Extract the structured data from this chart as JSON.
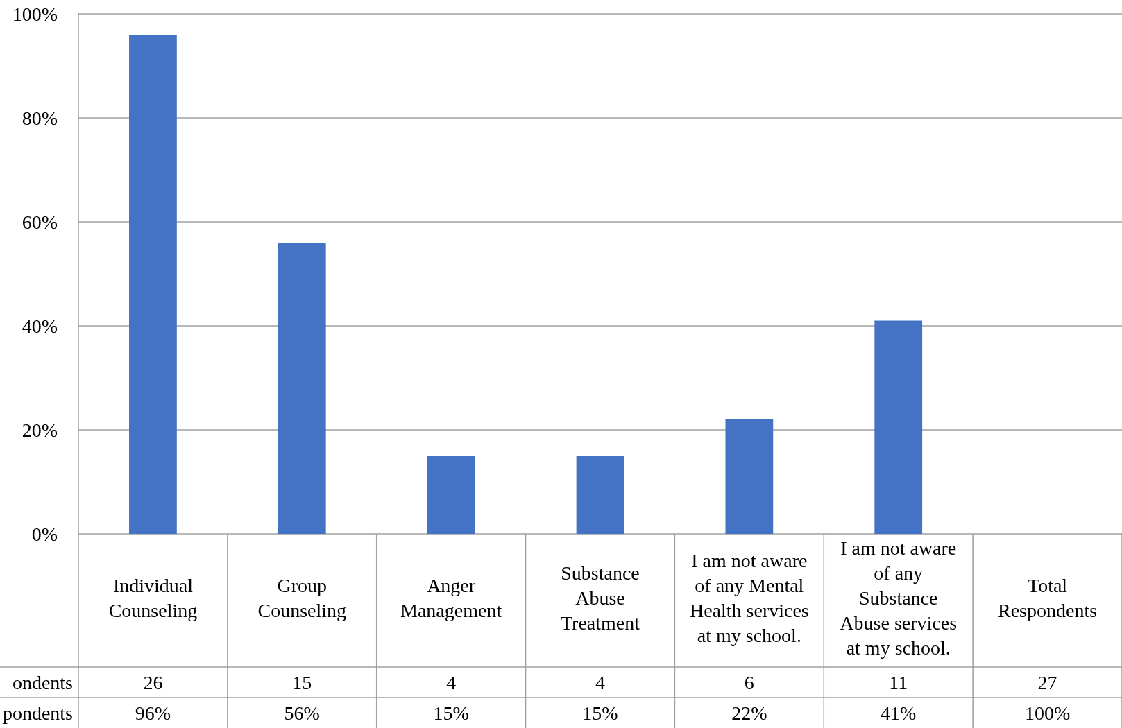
{
  "chart_data": {
    "type": "bar",
    "categories": [
      "Individual Counseling",
      "Group Counseling",
      "Anger Management",
      "Substance Abuse Treatment",
      "I am not aware of any Mental Health services at my school.",
      "I am not aware of any Substance Abuse services at my school.",
      "Total Respondents"
    ],
    "series": [
      {
        "name": "pondents",
        "color": "#4472c4",
        "values": [
          96,
          56,
          15,
          15,
          22,
          41,
          null
        ],
        "value_labels": [
          "96%",
          "56%",
          "15%",
          "15%",
          "22%",
          "41%",
          "100%"
        ]
      }
    ],
    "ylim": [
      0,
      100
    ],
    "yticks": [
      {
        "value": 0,
        "label": "0%"
      },
      {
        "value": 20,
        "label": "20%"
      },
      {
        "value": 40,
        "label": "40%"
      },
      {
        "value": 60,
        "label": "60%"
      },
      {
        "value": 80,
        "label": "80%"
      },
      {
        "value": 100,
        "label": "100%"
      }
    ],
    "grid": "y",
    "annotations": [
      "ondents",
      "26",
      "15",
      "4",
      "4",
      "6",
      "11",
      "27"
    ]
  }
}
